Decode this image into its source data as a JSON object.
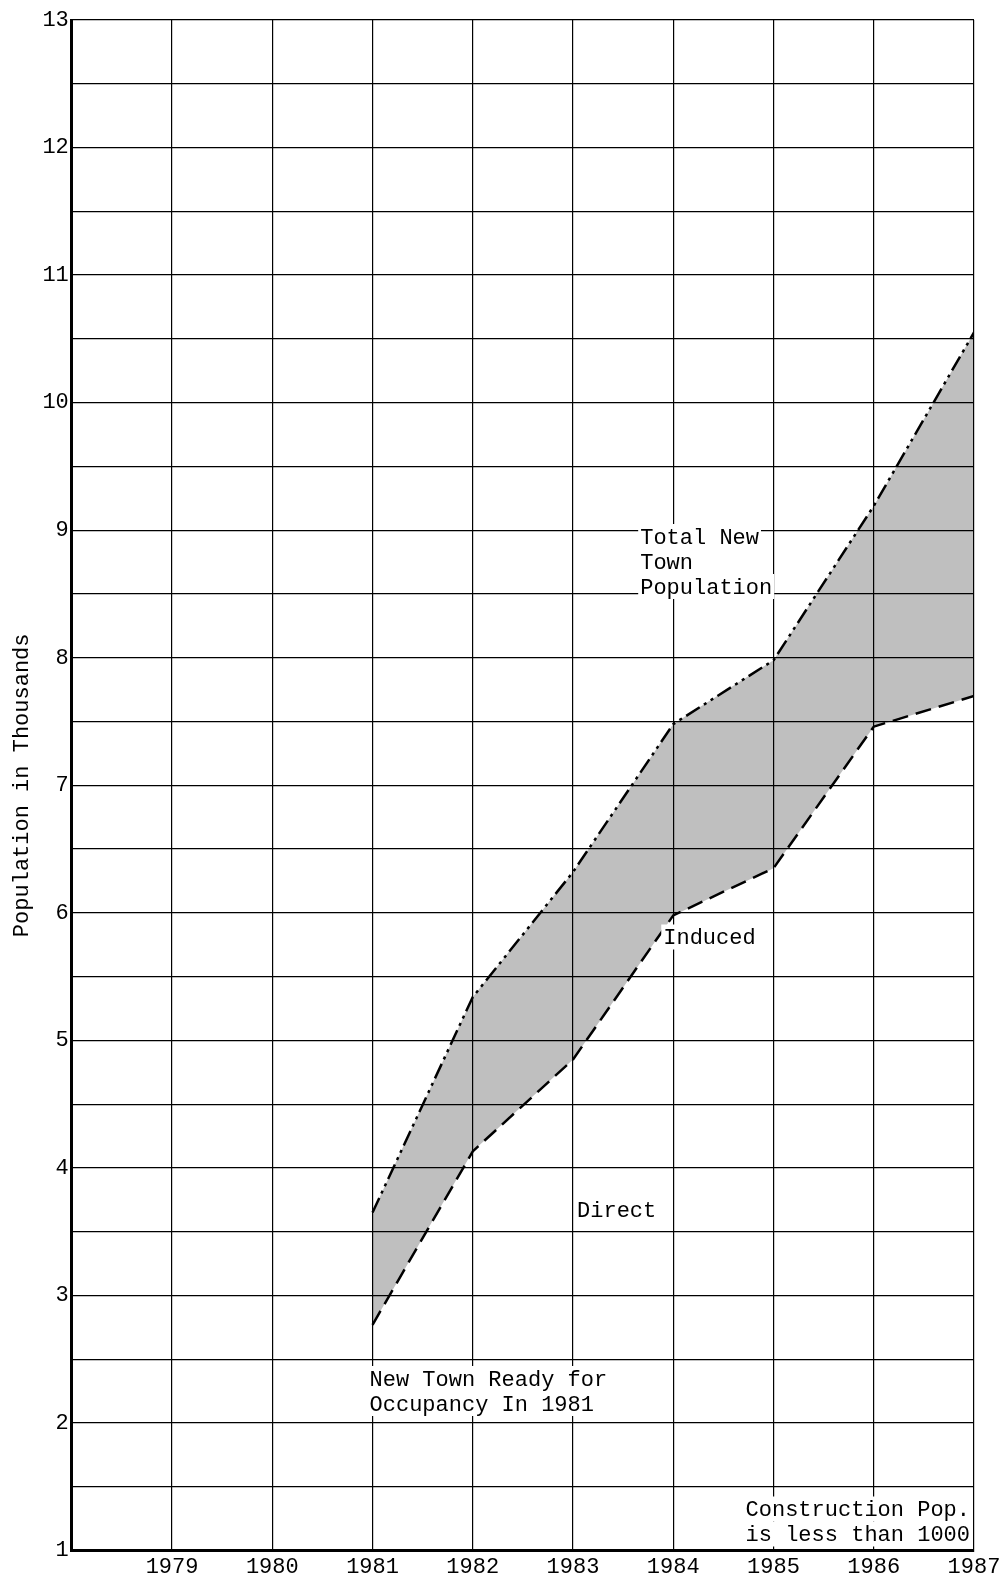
{
  "chart_data": {
    "type": "line",
    "ylabel": "Population in Thousands",
    "x": [
      1981,
      1982,
      1983,
      1984,
      1985,
      1986,
      1987
    ],
    "series": [
      {
        "type": "line",
        "color": "#000000",
        "line_style": "dashed",
        "values": [
          2.77,
          4.13,
          4.85,
          5.98,
          6.35,
          7.46,
          7.7
        ]
      },
      {
        "type": "area",
        "color": "#000000",
        "line_style": "dotted",
        "values": [
          3.65,
          5.34,
          6.32,
          7.48,
          7.98,
          9.19,
          10.55
        ]
      }
    ],
    "xlim": [
      1978,
      1987
    ],
    "xticks": [
      {
        "value": 1978,
        "label": null
      },
      1979,
      1980,
      1981,
      1982,
      1983,
      1984,
      1985,
      1986,
      1987
    ],
    "ylim": [
      1,
      13
    ],
    "yticks": [
      1,
      {
        "value": 1.5,
        "label": null
      },
      2,
      {
        "value": 2.5,
        "label": null
      },
      3,
      {
        "value": 3.5,
        "label": null
      },
      4,
      {
        "value": 4.5,
        "label": null
      },
      5,
      {
        "value": 5.5,
        "label": null
      },
      6,
      {
        "value": 6.5,
        "label": null
      },
      7,
      {
        "value": 7.5,
        "label": null
      },
      8,
      {
        "value": 8.5,
        "label": null
      },
      9,
      {
        "value": 9.5,
        "label": null
      },
      10,
      {
        "value": 10.5,
        "label": null
      },
      11,
      {
        "value": 11.5,
        "label": null
      },
      12,
      {
        "value": 12.5,
        "label": null
      },
      13
    ],
    "grid": true,
    "legend": false,
    "marker": "none",
    "annotations": [
      "Total New Town Population",
      {
        "text": "Induced",
        "x": 1983.9,
        "y": 5.9
      },
      "Direct",
      "New Town Ready for Occupancy In 1981",
      "Construction Pop. is less than 1000"
    ]
  }
}
